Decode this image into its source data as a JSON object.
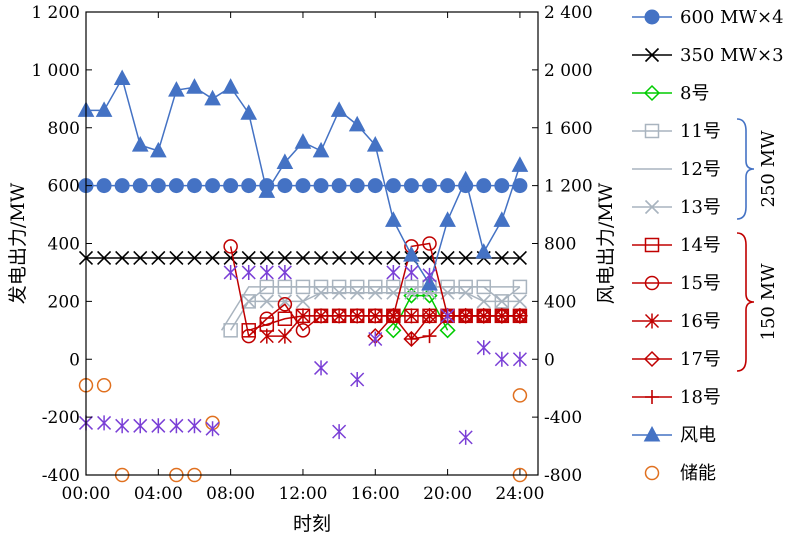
{
  "chart_data": {
    "type": "line",
    "xlabel": "时刻",
    "ylabel_left": "发电出力/MW",
    "ylabel_right": "风电出力/MW",
    "xlim": [
      0,
      25
    ],
    "ylim_left": [
      -400,
      1200
    ],
    "ylim_right": [
      -800,
      2400
    ],
    "x_tick_labels": [
      "00:00",
      "04:00",
      "08:00",
      "12:00",
      "16:00",
      "20:00",
      "24:00"
    ],
    "x_tick_values": [
      0,
      4,
      8,
      12,
      16,
      20,
      24
    ],
    "y_left_tick_labels": [
      "-400",
      "-200",
      "0",
      "200",
      "400",
      "600",
      "800",
      "1 000",
      "1 200"
    ],
    "y_left_tick_values": [
      -400,
      -200,
      0,
      200,
      400,
      600,
      800,
      1000,
      1200
    ],
    "y_right_tick_labels": [
      "-800",
      "-400",
      "0",
      "400",
      "800",
      "1 200",
      "1 600",
      "2 000",
      "2 400"
    ],
    "y_right_tick_values": [
      -800,
      -400,
      0,
      400,
      800,
      1200,
      1600,
      2000,
      2400
    ],
    "colors": {
      "blue": "#4472c4",
      "gray": "#a9b4bf",
      "red": "#c00000",
      "green": "#00cc00",
      "purple": "#7a3fd6",
      "orange": "#e0701f",
      "black": "#000000"
    },
    "brace_labels": {
      "group_250": "250 MW",
      "group_150": "150 MW"
    },
    "series": [
      {
        "name": "600 MW×4",
        "axis": "left",
        "color": "#4472c4",
        "marker": "filled-circle",
        "line": true,
        "x": [
          0,
          1,
          2,
          3,
          4,
          5,
          6,
          7,
          8,
          9,
          10,
          11,
          12,
          13,
          14,
          15,
          16,
          17,
          18,
          19,
          20,
          21,
          22,
          23,
          24
        ],
        "y": [
          600,
          600,
          600,
          600,
          600,
          600,
          600,
          600,
          600,
          600,
          600,
          600,
          600,
          600,
          600,
          600,
          600,
          600,
          600,
          600,
          600,
          600,
          600,
          600,
          600
        ]
      },
      {
        "name": "350 MW×3",
        "axis": "left",
        "color": "#000000",
        "marker": "x",
        "line": true,
        "x": [
          0,
          1,
          2,
          3,
          4,
          5,
          6,
          7,
          8,
          9,
          10,
          11,
          12,
          13,
          14,
          15,
          16,
          17,
          18,
          19,
          20,
          21,
          22,
          23,
          24
        ],
        "y": [
          350,
          350,
          350,
          350,
          350,
          350,
          350,
          350,
          350,
          350,
          350,
          350,
          350,
          350,
          350,
          350,
          350,
          350,
          350,
          350,
          350,
          350,
          350,
          350,
          350
        ]
      },
      {
        "name": "8号",
        "axis": "left",
        "color": "#00cc00",
        "marker": "diamond",
        "line": true,
        "x": [
          17,
          18,
          19,
          20
        ],
        "y": [
          100,
          220,
          220,
          100
        ]
      },
      {
        "name": "11号",
        "axis": "left",
        "color": "#a9b4bf",
        "marker": "square",
        "line": true,
        "x": [
          8,
          9,
          10,
          11,
          12,
          13,
          14,
          15,
          16,
          17,
          18,
          19,
          20,
          21,
          22,
          23,
          24
        ],
        "y": [
          100,
          200,
          250,
          250,
          250,
          250,
          250,
          250,
          250,
          250,
          250,
          250,
          250,
          250,
          250,
          200,
          250
        ]
      },
      {
        "name": "12号",
        "axis": "left",
        "color": "#a9b4bf",
        "marker": "none",
        "line": true,
        "x": [
          7.5,
          8,
          9,
          10,
          11,
          12,
          13,
          14,
          15,
          16,
          17,
          18,
          19,
          20,
          21,
          22,
          23,
          24
        ],
        "y": [
          100,
          150,
          250,
          250,
          250,
          250,
          250,
          250,
          250,
          250,
          250,
          250,
          250,
          250,
          250,
          250,
          250,
          250
        ]
      },
      {
        "name": "13号",
        "axis": "left",
        "color": "#a9b4bf",
        "marker": "x",
        "line": true,
        "x": [
          9,
          10,
          11,
          12,
          13,
          14,
          15,
          16,
          17,
          18,
          19,
          20,
          21,
          22,
          23,
          24
        ],
        "y": [
          200,
          200,
          200,
          200,
          230,
          230,
          230,
          230,
          230,
          230,
          230,
          230,
          230,
          200,
          200,
          200
        ]
      },
      {
        "name": "14号",
        "axis": "left",
        "color": "#c00000",
        "marker": "square",
        "line": true,
        "x": [
          9,
          10,
          11,
          12,
          13,
          14,
          15,
          16,
          17,
          18,
          19,
          20,
          21,
          22,
          23,
          24
        ],
        "y": [
          100,
          120,
          140,
          150,
          150,
          150,
          150,
          150,
          150,
          150,
          150,
          150,
          150,
          150,
          150,
          150
        ]
      },
      {
        "name": "15号",
        "axis": "left",
        "color": "#c00000",
        "marker": "circle",
        "line": true,
        "x": [
          8,
          9,
          10,
          11,
          12,
          13,
          14,
          15,
          16,
          17,
          18,
          19,
          20,
          21,
          22,
          23,
          24
        ],
        "y": [
          390,
          80,
          140,
          190,
          100,
          150,
          150,
          150,
          150,
          150,
          390,
          400,
          150,
          150,
          150,
          150,
          150
        ]
      },
      {
        "name": "16号",
        "axis": "left",
        "color": "#c00000",
        "marker": "asterisk",
        "line": true,
        "x": [
          10,
          11,
          12,
          13,
          14,
          15,
          16,
          17,
          18,
          19,
          20,
          21,
          22,
          23,
          24
        ],
        "y": [
          80,
          80,
          150,
          150,
          150,
          150,
          150,
          150,
          150,
          150,
          150,
          150,
          150,
          150,
          150
        ]
      },
      {
        "name": "17号",
        "axis": "left",
        "color": "#c00000",
        "marker": "diamond",
        "line": true,
        "x": [
          16,
          17,
          18,
          19,
          20,
          21,
          22,
          23,
          24
        ],
        "y": [
          80,
          150,
          70,
          150,
          150,
          150,
          150,
          150,
          150
        ]
      },
      {
        "name": "18号",
        "axis": "left",
        "color": "#c00000",
        "marker": "plus",
        "line": true,
        "x": [
          18,
          19,
          20,
          21,
          22,
          23,
          24
        ],
        "y": [
          70,
          80,
          150,
          150,
          150,
          150,
          150
        ]
      },
      {
        "name": "风电",
        "axis": "right",
        "color": "#4472c4",
        "marker": "filled-triangle",
        "line": true,
        "x": [
          0,
          1,
          2,
          3,
          4,
          5,
          6,
          7,
          8,
          9,
          10,
          11,
          12,
          13,
          14,
          15,
          16,
          17,
          18,
          19,
          20,
          21,
          22,
          23,
          24
        ],
        "y": [
          1720,
          1720,
          1940,
          1480,
          1440,
          1860,
          1880,
          1800,
          1880,
          1700,
          1160,
          1360,
          1500,
          1440,
          1720,
          1620,
          1480,
          960,
          720,
          520,
          960,
          1240,
          740,
          960,
          1340
        ]
      },
      {
        "name": "储能",
        "axis": "left",
        "color": "#e0701f",
        "marker": "open-circle",
        "line": false,
        "x": [
          0,
          1,
          2,
          5,
          6,
          7,
          24
        ],
        "y": [
          -90,
          -90,
          -400,
          -400,
          -400,
          -220,
          -400
        ]
      },
      {
        "name": "",
        "axis": "left",
        "color": "#7a3fd6",
        "marker": "asterisk",
        "line": false,
        "x": [
          0,
          1,
          2,
          3,
          4,
          5,
          6,
          7,
          8,
          9,
          10,
          11,
          13,
          14,
          15,
          16,
          17,
          18,
          19,
          20,
          21,
          22,
          23,
          24
        ],
        "y": [
          -220,
          -220,
          -230,
          -230,
          -230,
          -230,
          -230,
          -240,
          300,
          300,
          300,
          300,
          -30,
          -250,
          -70,
          70,
          300,
          300,
          290,
          150,
          -270,
          40,
          0,
          0
        ]
      }
    ],
    "extra_points": [
      {
        "series_index": 12,
        "x": 24,
        "y": -125
      }
    ]
  }
}
